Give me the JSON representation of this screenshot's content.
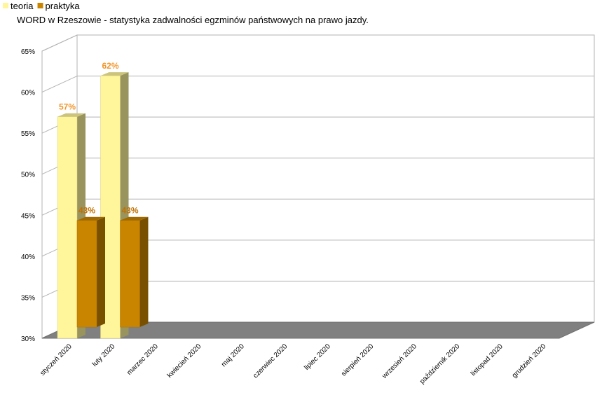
{
  "chart_data": {
    "type": "bar3d",
    "title": "WORD w Rzeszowie - statystyka zadwalności egzminów państwowych na prawo jazdy.",
    "categories": [
      "styczeń 2020",
      "luty 2020",
      "marzec 2020",
      "kwiecień 2020",
      "maj 2020",
      "czerwiec 2020",
      "lipiec 2020",
      "sierpień 2020",
      "wrzesień 2020",
      "październik 2020",
      "listopad 2020",
      "grudzień 2020"
    ],
    "series": [
      {
        "name": "teoria",
        "color": "#fff59b",
        "values": [
          57,
          62,
          null,
          null,
          null,
          null,
          null,
          null,
          null,
          null,
          null,
          null
        ],
        "value_labels": [
          "57%",
          "62%",
          null,
          null,
          null,
          null,
          null,
          null,
          null,
          null,
          null,
          null
        ],
        "label_color": "#f0962a"
      },
      {
        "name": "praktyka",
        "color": "#c98500",
        "values": [
          43,
          43,
          null,
          null,
          null,
          null,
          null,
          null,
          null,
          null,
          null,
          null
        ],
        "value_labels": [
          "43%",
          "43%",
          null,
          null,
          null,
          null,
          null,
          null,
          null,
          null,
          null,
          null
        ],
        "label_color": "#c27000"
      }
    ],
    "ylim": [
      30,
      65
    ],
    "yticks": [
      {
        "value": 30,
        "label": "30%"
      },
      {
        "value": 35,
        "label": "35%"
      },
      {
        "value": 40,
        "label": "40%"
      },
      {
        "value": 45,
        "label": "45%"
      },
      {
        "value": 50,
        "label": "50%"
      },
      {
        "value": 55,
        "label": "55%"
      },
      {
        "value": 60,
        "label": "60%"
      },
      {
        "value": 65,
        "label": "65%"
      }
    ],
    "grid": true,
    "legend": "top-left"
  }
}
